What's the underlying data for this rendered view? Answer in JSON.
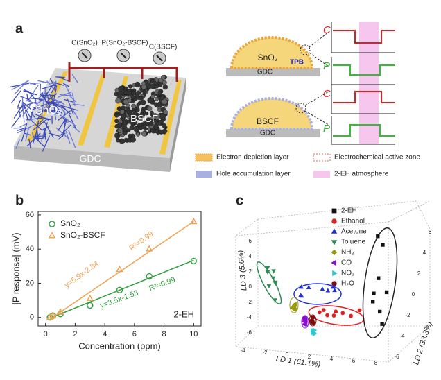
{
  "figure_labels": [
    "a",
    "b",
    "c"
  ],
  "panel_a": {
    "meters": [
      "C(SnO₂)",
      "P(SnO₂-BSCF)",
      "C(BSCF)"
    ],
    "device_labels": [
      "SnO₂",
      "BSCF",
      "GDC"
    ],
    "dome_labels": [
      [
        "SnO₂",
        "GDC"
      ],
      [
        "BSCF",
        "GDC"
      ]
    ],
    "tpb": "TPB",
    "plot_labels": [
      "C",
      "P",
      "C",
      "P"
    ],
    "legend": [
      "Electron depletion layer",
      "Electrochemical active zone",
      "Hole accumulation layer",
      "2-EH atmosphere"
    ]
  },
  "chart_data": {
    "type": "scatter",
    "xlabel": "Concentration (ppm)",
    "ylabel": "|P response| (mV)",
    "xlim": [
      -0.5,
      10.5
    ],
    "ylim": [
      -5,
      62
    ],
    "xticks": [
      0,
      2,
      4,
      6,
      8,
      10
    ],
    "yticks": [
      0,
      20,
      40,
      60
    ],
    "annotation": "2-EH",
    "legend": "upper left",
    "series": [
      {
        "name": "SnO₂",
        "color": "#2e9e3e",
        "marker": "circle",
        "x": [
          0.3,
          0.5,
          1,
          3,
          5,
          7,
          10
        ],
        "values": [
          0,
          1,
          2,
          7,
          16,
          24,
          33
        ],
        "fit": {
          "slope": 3.5,
          "intercept": -1.53,
          "equation": "y=3.5x-1.53",
          "r2": "R²=0.99"
        }
      },
      {
        "name": "SnO₂-BSCF",
        "color": "#f0a050",
        "marker": "triangle",
        "x": [
          0.3,
          0.5,
          1,
          3,
          5,
          7,
          10
        ],
        "values": [
          0,
          1,
          3,
          11,
          28,
          40,
          56
        ],
        "fit": {
          "slope": 5.9,
          "intercept": -2.84,
          "equation": "y=5.9x-2.84",
          "r2": "R²=0.99"
        }
      }
    ]
  },
  "panel_c": {
    "legend": [
      {
        "name": "2-EH",
        "color": "#111111",
        "marker": "square"
      },
      {
        "name": "Ethanol",
        "color": "#e02020",
        "marker": "circle"
      },
      {
        "name": "Acetone",
        "color": "#2030d0",
        "marker": "triangle"
      },
      {
        "name": "Toluene",
        "color": "#2e8b57",
        "marker": "down"
      },
      {
        "name": "NH₃",
        "color": "#9a9a10",
        "marker": "diamond"
      },
      {
        "name": "CO",
        "color": "#8a10d0",
        "marker": "left"
      },
      {
        "name": "NO₂",
        "color": "#30c8c8",
        "marker": "right"
      },
      {
        "name": "H₂O",
        "color": "#801010",
        "marker": "circle"
      }
    ],
    "axis_labels": [
      "LD 1 (61.1%)",
      "LD 2 (33.3%)",
      "LD 3 (5.6%)"
    ],
    "ld1_ticks": [
      "-4",
      "-2",
      "0",
      "2",
      "4",
      "6",
      "8"
    ],
    "ld2_ticks": [
      "-6",
      "-4",
      "-2",
      "0",
      "2",
      "4",
      "6"
    ],
    "ld3_ticks": [
      "-6",
      "-4",
      "-2",
      "0",
      "2",
      "4",
      "6"
    ]
  }
}
